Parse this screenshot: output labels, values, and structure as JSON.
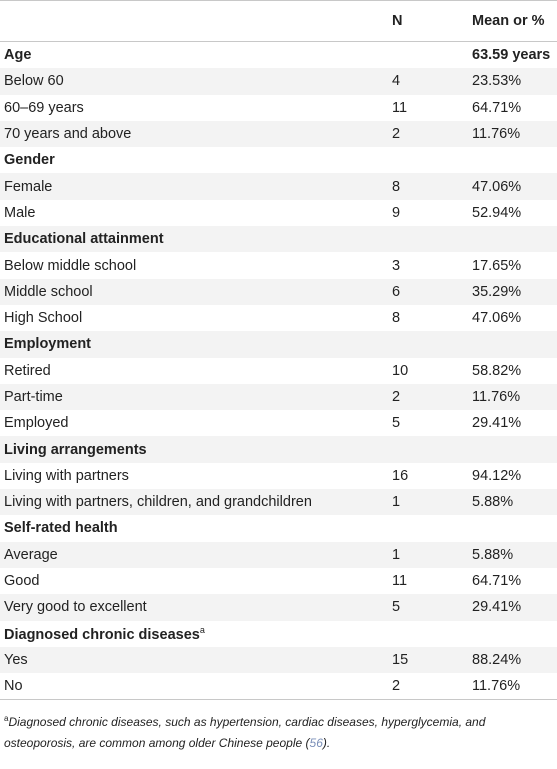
{
  "table": {
    "headers": [
      "",
      "N",
      "Mean or %"
    ],
    "rows": [
      {
        "type": "section",
        "label": "Age",
        "n": "",
        "value": "63.59 years"
      },
      {
        "type": "row",
        "label": "Below 60",
        "n": "4",
        "value": "23.53%"
      },
      {
        "type": "row",
        "label": "60–69 years",
        "n": "11",
        "value": "64.71%"
      },
      {
        "type": "row",
        "label": "70 years and above",
        "n": "2",
        "value": "11.76%"
      },
      {
        "type": "section",
        "label": "Gender",
        "n": "",
        "value": ""
      },
      {
        "type": "row",
        "label": "Female",
        "n": "8",
        "value": "47.06%"
      },
      {
        "type": "row",
        "label": "Male",
        "n": "9",
        "value": "52.94%"
      },
      {
        "type": "section",
        "label": "Educational attainment",
        "n": "",
        "value": ""
      },
      {
        "type": "row",
        "label": "Below middle school",
        "n": "3",
        "value": "17.65%"
      },
      {
        "type": "row",
        "label": "Middle school",
        "n": "6",
        "value": "35.29%"
      },
      {
        "type": "row",
        "label": "High School",
        "n": "8",
        "value": "47.06%"
      },
      {
        "type": "section",
        "label": "Employment",
        "n": "",
        "value": ""
      },
      {
        "type": "row",
        "label": "Retired",
        "n": "10",
        "value": "58.82%"
      },
      {
        "type": "row",
        "label": "Part-time",
        "n": "2",
        "value": "11.76%"
      },
      {
        "type": "row",
        "label": "Employed",
        "n": "5",
        "value": "29.41%"
      },
      {
        "type": "section",
        "label": "Living arrangements",
        "n": "",
        "value": ""
      },
      {
        "type": "row",
        "label": "Living with partners",
        "n": "16",
        "value": "94.12%"
      },
      {
        "type": "row",
        "label": "Living with partners, children, and grandchildren",
        "n": "1",
        "value": "5.88%"
      },
      {
        "type": "section",
        "label": "Self-rated health",
        "n": "",
        "value": ""
      },
      {
        "type": "row",
        "label": "Average",
        "n": "1",
        "value": "5.88%"
      },
      {
        "type": "row",
        "label": "Good",
        "n": "11",
        "value": "64.71%"
      },
      {
        "type": "row",
        "label": "Very good to excellent",
        "n": "5",
        "value": "29.41%"
      },
      {
        "type": "section",
        "label": "Diagnosed chronic diseases",
        "sup": "a",
        "n": "",
        "value": ""
      },
      {
        "type": "row",
        "label": "Yes",
        "n": "15",
        "value": "88.24%"
      },
      {
        "type": "row",
        "label": "No",
        "n": "2",
        "value": "11.76%"
      }
    ]
  },
  "footnote": {
    "marker": "a",
    "text_before": "Diagnosed chronic diseases, such as hypertension, cardiac diseases, hyperglycemia, and osteoporosis, are common among older Chinese people (",
    "ref": "56",
    "text_after": ")."
  }
}
